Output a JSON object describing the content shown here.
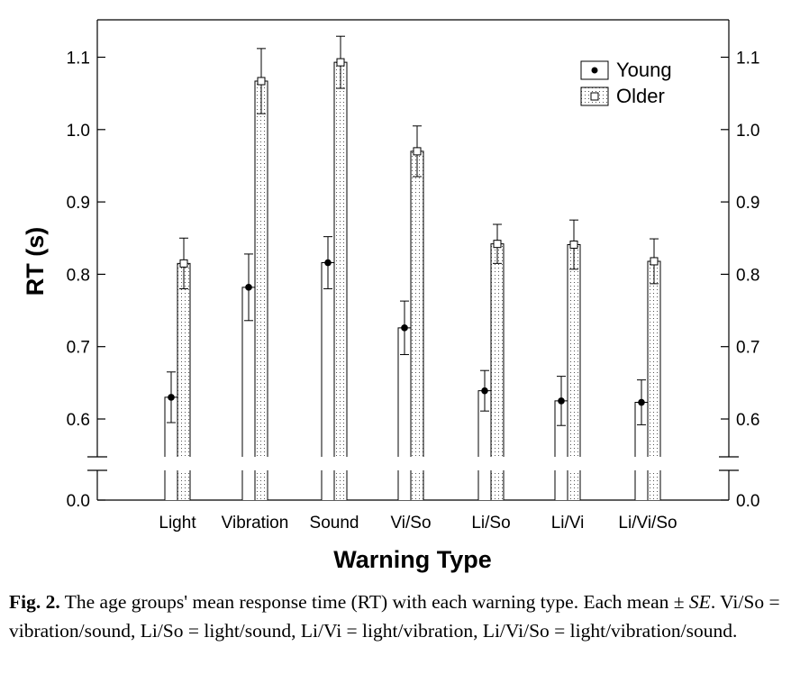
{
  "chart_data": {
    "type": "bar",
    "categories": [
      "Light",
      "Vibration",
      "Sound",
      "Vi/So",
      "Li/So",
      "Li/Vi",
      "Li/Vi/So"
    ],
    "series": [
      {
        "name": "Young",
        "values": [
          0.63,
          0.782,
          0.816,
          0.726,
          0.639,
          0.625,
          0.623
        ],
        "se": [
          0.035,
          0.046,
          0.036,
          0.037,
          0.028,
          0.034,
          0.031
        ]
      },
      {
        "name": "Older",
        "values": [
          0.815,
          1.067,
          1.093,
          0.97,
          0.842,
          0.841,
          0.818
        ],
        "se": [
          0.035,
          0.045,
          0.036,
          0.035,
          0.027,
          0.034,
          0.031
        ]
      }
    ],
    "xlabel": "Warning Type",
    "ylabel": "RT (s)",
    "ylim": [
      0.55,
      1.15
    ],
    "yticks": [
      "0.0",
      "0.6",
      "0.7",
      "0.8",
      "0.9",
      "1.0",
      "1.1"
    ],
    "axis_break": true,
    "legend_position": "top-right",
    "grid": false,
    "colors": {
      "young_fill": "#ffffff",
      "older_fill": "#ffffff",
      "older_pattern": "dotted",
      "stroke": "#000000"
    }
  },
  "caption": {
    "label": "Fig. 2.",
    "text_1": " The age groups' mean response time (RT) with each warning type. Each mean ± ",
    "se_italic": "SE",
    "text_2": ".  Vi/So = vibration/sound,  Li/So = light/sound,  Li/Vi = light/vibration, Li/Vi/So = light/vibration/sound."
  }
}
